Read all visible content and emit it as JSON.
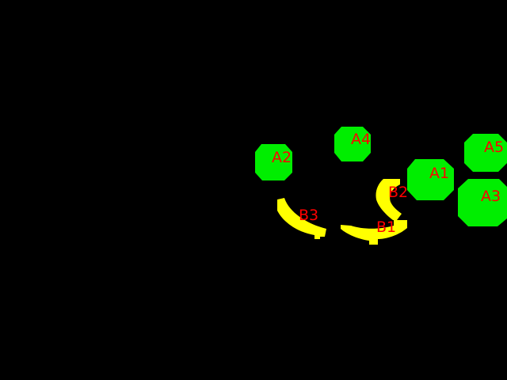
{
  "background_color": "#000000",
  "colors": {
    "apple": "#00ee00",
    "banana": "#ffff00",
    "label": "#ff0000"
  },
  "objects": [
    {
      "id": "A1",
      "kind": "apple",
      "label": "A1"
    },
    {
      "id": "A2",
      "kind": "apple",
      "label": "A2"
    },
    {
      "id": "A3",
      "kind": "apple",
      "label": "A3"
    },
    {
      "id": "A4",
      "kind": "apple",
      "label": "A4"
    },
    {
      "id": "A5",
      "kind": "apple",
      "label": "A5"
    },
    {
      "id": "B1",
      "kind": "banana",
      "label": "B1"
    },
    {
      "id": "B2",
      "kind": "banana",
      "label": "B2"
    },
    {
      "id": "B3",
      "kind": "banana",
      "label": "B3"
    }
  ]
}
